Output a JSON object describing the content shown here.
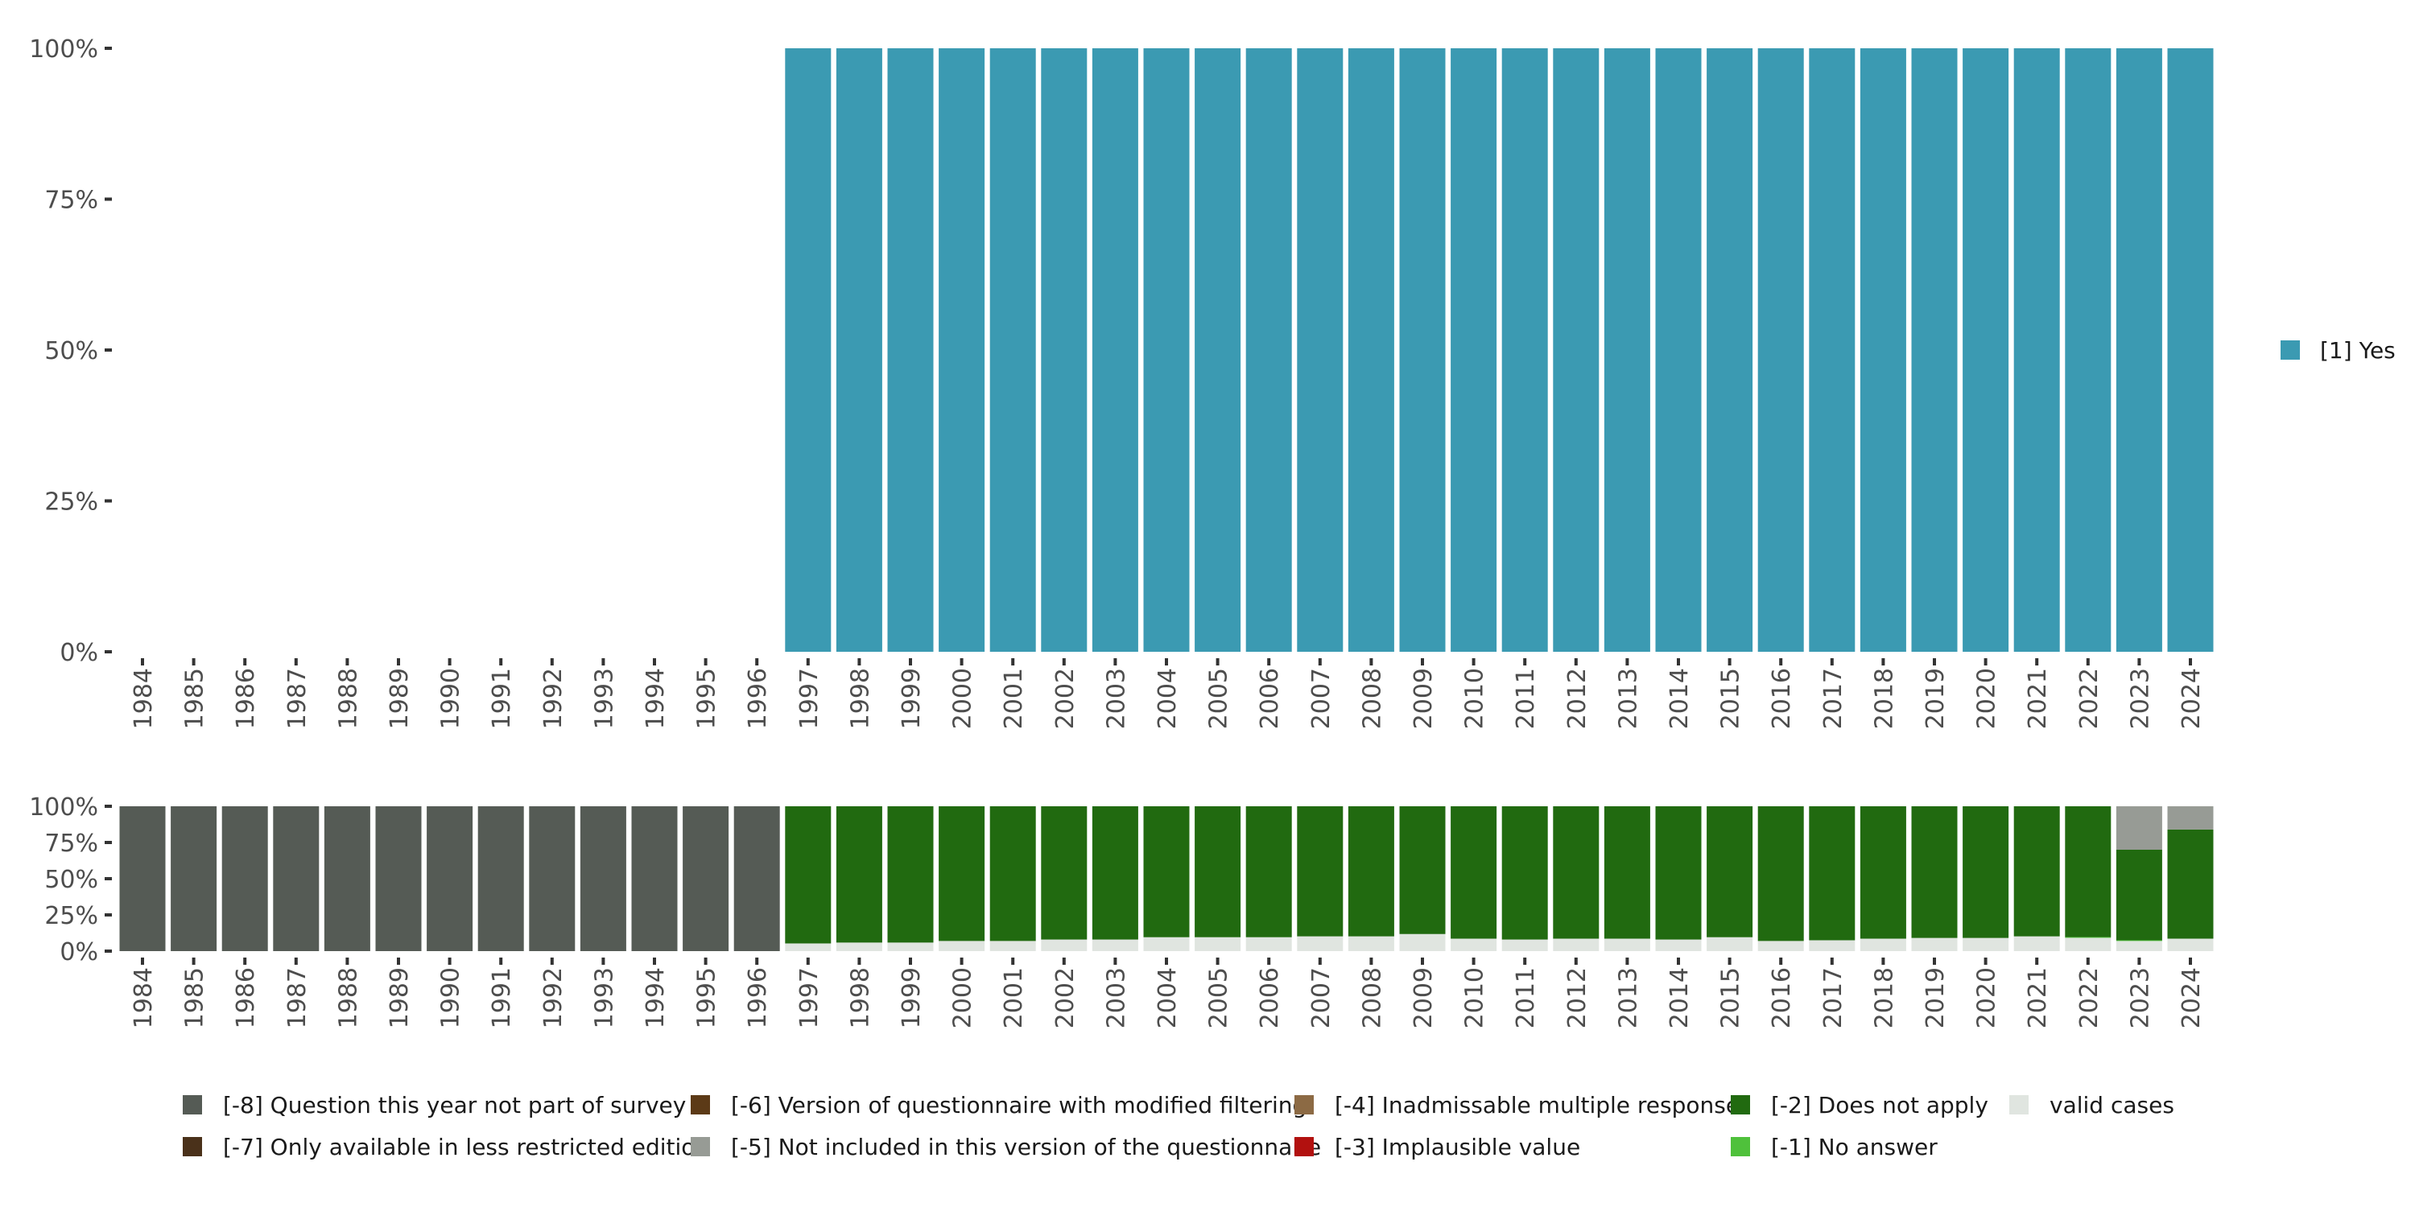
{
  "chart_data": [
    {
      "type": "bar",
      "stacked": true,
      "title": "",
      "xlabel": "",
      "ylabel": "",
      "ylim": [
        0,
        100
      ],
      "yticks": [
        "0%",
        "25%",
        "50%",
        "75%",
        "100%"
      ],
      "categories": [
        "1984",
        "1985",
        "1986",
        "1987",
        "1988",
        "1989",
        "1990",
        "1991",
        "1992",
        "1993",
        "1994",
        "1995",
        "1996",
        "1997",
        "1998",
        "1999",
        "2000",
        "2001",
        "2002",
        "2003",
        "2004",
        "2005",
        "2006",
        "2007",
        "2008",
        "2009",
        "2010",
        "2011",
        "2012",
        "2013",
        "2014",
        "2015",
        "2016",
        "2017",
        "2018",
        "2019",
        "2020",
        "2021",
        "2022",
        "2023",
        "2024"
      ],
      "legend_position": "right",
      "series": [
        {
          "name": "[1] Yes",
          "color": "#3B9AB2",
          "values": [
            0,
            0,
            0,
            0,
            0,
            0,
            0,
            0,
            0,
            0,
            0,
            0,
            0,
            100,
            100,
            100,
            100,
            100,
            100,
            100,
            100,
            100,
            100,
            100,
            100,
            100,
            100,
            100,
            100,
            100,
            100,
            100,
            100,
            100,
            100,
            100,
            100,
            100,
            100,
            100,
            100
          ]
        }
      ]
    },
    {
      "type": "bar",
      "stacked": true,
      "title": "",
      "xlabel": "",
      "ylabel": "",
      "ylim": [
        0,
        100
      ],
      "yticks": [
        "0%",
        "25%",
        "50%",
        "75%",
        "100%"
      ],
      "categories": [
        "1984",
        "1985",
        "1986",
        "1987",
        "1988",
        "1989",
        "1990",
        "1991",
        "1992",
        "1993",
        "1994",
        "1995",
        "1996",
        "1997",
        "1998",
        "1999",
        "2000",
        "2001",
        "2002",
        "2003",
        "2004",
        "2005",
        "2006",
        "2007",
        "2008",
        "2009",
        "2010",
        "2011",
        "2012",
        "2013",
        "2014",
        "2015",
        "2016",
        "2017",
        "2018",
        "2019",
        "2020",
        "2021",
        "2022",
        "2023",
        "2024"
      ],
      "legend_position": "bottom",
      "series": [
        {
          "name": "valid cases",
          "color": "#E0E5E0",
          "values": [
            0,
            0,
            0,
            0,
            0,
            0,
            0,
            0,
            0,
            0,
            0,
            0,
            0,
            5.3,
            5.9,
            5.9,
            7,
            7,
            8,
            8,
            9.6,
            9.6,
            9.6,
            10.2,
            10.2,
            11.8,
            8.6,
            8,
            8.6,
            8.6,
            8,
            9.6,
            7,
            7.5,
            8.6,
            9.1,
            9.1,
            10.2,
            9.2,
            7,
            8.6
          ]
        },
        {
          "name": "[-1] No answer",
          "color": "#4FC13B",
          "values": [
            0,
            0,
            0,
            0,
            0,
            0,
            0,
            0,
            0,
            0,
            0,
            0,
            0,
            0,
            0,
            0,
            0,
            0,
            0,
            0,
            0,
            0,
            0,
            0,
            0,
            0,
            0,
            0,
            0,
            0,
            0,
            0,
            0,
            0,
            0,
            0,
            0,
            0,
            0.5,
            0.5,
            0
          ]
        },
        {
          "name": "[-2] Does not apply",
          "color": "#216A10",
          "values": [
            0,
            0,
            0,
            0,
            0,
            0,
            0,
            0,
            0,
            0,
            0,
            0,
            0,
            94.7,
            94.1,
            94.1,
            93,
            93,
            92,
            92,
            90.4,
            90.4,
            90.4,
            89.8,
            89.8,
            88.2,
            91.4,
            92,
            91.4,
            91.4,
            92,
            90.4,
            93,
            92.5,
            91.4,
            90.9,
            90.9,
            89.8,
            90.3,
            62.5,
            75.4
          ]
        },
        {
          "name": "[-3] Implausible value",
          "color": "#B2110F",
          "values": [
            0,
            0,
            0,
            0,
            0,
            0,
            0,
            0,
            0,
            0,
            0,
            0,
            0,
            0,
            0,
            0,
            0,
            0,
            0,
            0,
            0,
            0,
            0,
            0,
            0,
            0,
            0,
            0,
            0,
            0,
            0,
            0,
            0,
            0,
            0,
            0,
            0,
            0,
            0,
            0,
            0
          ]
        },
        {
          "name": "[-4] Inadmissable multiple response",
          "color": "#8C6A44",
          "values": [
            0,
            0,
            0,
            0,
            0,
            0,
            0,
            0,
            0,
            0,
            0,
            0,
            0,
            0,
            0,
            0,
            0,
            0,
            0,
            0,
            0,
            0,
            0,
            0,
            0,
            0,
            0,
            0,
            0,
            0,
            0,
            0,
            0,
            0,
            0,
            0,
            0,
            0,
            0,
            0,
            0
          ]
        },
        {
          "name": "[-5] Not included in this version of the questionnaire",
          "color": "#979B95",
          "values": [
            0,
            0,
            0,
            0,
            0,
            0,
            0,
            0,
            0,
            0,
            0,
            0,
            0,
            0,
            0,
            0,
            0,
            0,
            0,
            0,
            0,
            0,
            0,
            0,
            0,
            0,
            0,
            0,
            0,
            0,
            0,
            0,
            0,
            0,
            0,
            0,
            0,
            0,
            0,
            30,
            16
          ]
        },
        {
          "name": "[-6] Version of questionnaire with modified filtering",
          "color": "#5C3A17",
          "values": [
            0,
            0,
            0,
            0,
            0,
            0,
            0,
            0,
            0,
            0,
            0,
            0,
            0,
            0,
            0,
            0,
            0,
            0,
            0,
            0,
            0,
            0,
            0,
            0,
            0,
            0,
            0,
            0,
            0,
            0,
            0,
            0,
            0,
            0,
            0,
            0,
            0,
            0,
            0,
            0,
            0
          ]
        },
        {
          "name": "[-7] Only available in less restricted edition",
          "color": "#4A311A",
          "values": [
            0,
            0,
            0,
            0,
            0,
            0,
            0,
            0,
            0,
            0,
            0,
            0,
            0,
            0,
            0,
            0,
            0,
            0,
            0,
            0,
            0,
            0,
            0,
            0,
            0,
            0,
            0,
            0,
            0,
            0,
            0,
            0,
            0,
            0,
            0,
            0,
            0,
            0,
            0,
            0,
            0
          ]
        },
        {
          "name": "[-8] Question this year not part of survey",
          "color": "#555B55",
          "values": [
            100,
            100,
            100,
            100,
            100,
            100,
            100,
            100,
            100,
            100,
            100,
            100,
            100,
            0,
            0,
            0,
            0,
            0,
            0,
            0,
            0,
            0,
            0,
            0,
            0,
            0,
            0,
            0,
            0,
            0,
            0,
            0,
            0,
            0,
            0,
            0,
            0,
            0,
            0,
            0,
            0
          ]
        }
      ],
      "legend_order": [
        "[-8] Question this year not part of survey",
        "[-7] Only available in less restricted edition",
        "[-6] Version of questionnaire with modified filtering",
        "[-5] Not included in this version of the questionnaire",
        "[-4] Inadmissable multiple response",
        "[-3] Implausible value",
        "[-2] Does not apply",
        "[-1] No answer",
        "valid cases"
      ]
    }
  ]
}
